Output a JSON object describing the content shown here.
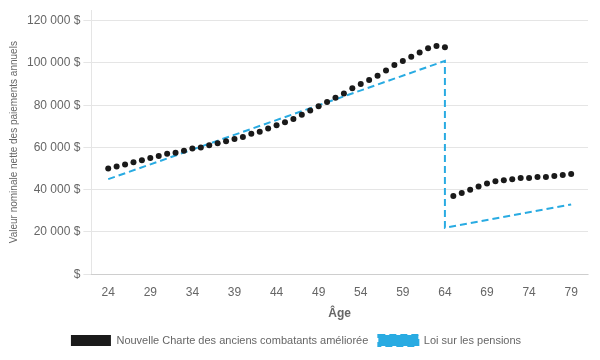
{
  "chart_data": {
    "type": "scatter",
    "xlabel": "Âge",
    "ylabel": "Valeur nominale nette des paiements annuels",
    "xlim": [
      22,
      81
    ],
    "ylim": [
      0,
      125000
    ],
    "xticks": [
      24,
      29,
      34,
      39,
      44,
      49,
      54,
      59,
      64,
      69,
      74,
      79
    ],
    "yticks": [
      {
        "value": 0,
        "label": "$"
      },
      {
        "value": 20000,
        "label": "20 000 $"
      },
      {
        "value": 40000,
        "label": "40 000 $"
      },
      {
        "value": 60000,
        "label": "60 000 $"
      },
      {
        "value": 80000,
        "label": "80 000 $"
      },
      {
        "value": 100000,
        "label": "100 000 $"
      },
      {
        "value": 120000,
        "label": "120 000 $"
      }
    ],
    "grid": "y",
    "legend": "bottom",
    "series": [
      {
        "name": "Nouvelle Charte des anciens combatants améliorée",
        "type": "scatter",
        "marker": "o",
        "color": "#1a1a1a",
        "x": [
          24,
          25,
          26,
          27,
          28,
          29,
          30,
          31,
          32,
          33,
          34,
          35,
          36,
          37,
          38,
          39,
          40,
          41,
          42,
          43,
          44,
          45,
          46,
          47,
          48,
          49,
          50,
          51,
          52,
          53,
          54,
          55,
          56,
          57,
          58,
          59,
          60,
          61,
          62,
          63,
          64,
          65,
          66,
          67,
          68,
          69,
          70,
          71,
          72,
          73,
          74,
          75,
          76,
          77,
          78,
          79
        ],
        "values": [
          50000,
          51000,
          52000,
          53000,
          54000,
          55000,
          56000,
          57000,
          57500,
          58500,
          59500,
          60000,
          61000,
          62000,
          63000,
          64000,
          65000,
          66500,
          67500,
          69000,
          70500,
          72000,
          73500,
          75500,
          77500,
          79500,
          81500,
          83500,
          85500,
          88000,
          90000,
          92000,
          94000,
          96500,
          99000,
          101000,
          103000,
          105000,
          107000,
          108000,
          107500,
          37000,
          38500,
          40000,
          41500,
          43000,
          44000,
          44500,
          45000,
          45500,
          45500,
          46000,
          46000,
          46500,
          47000,
          47500
        ]
      },
      {
        "name": "Loi sur les pensions",
        "type": "line",
        "line_style": "dashed",
        "color": "#29ABE2",
        "x": [
          24,
          64,
          64,
          79
        ],
        "values": [
          45000,
          101000,
          22000,
          33000
        ]
      }
    ]
  }
}
